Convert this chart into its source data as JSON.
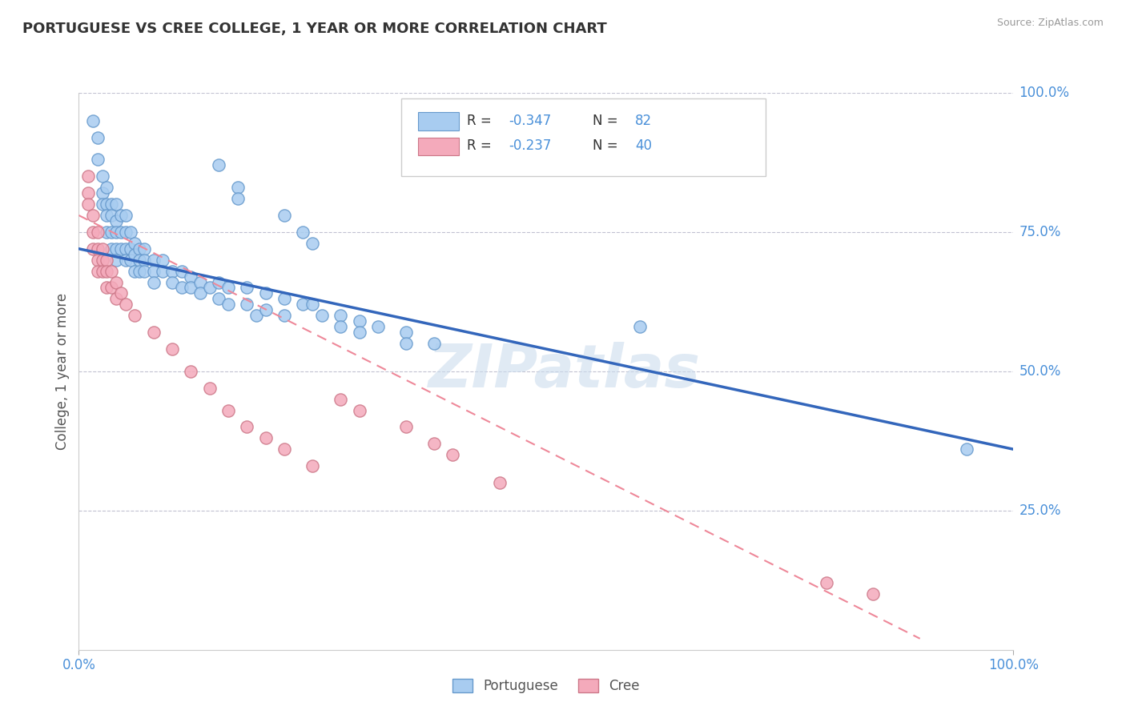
{
  "title": "PORTUGUESE VS CREE COLLEGE, 1 YEAR OR MORE CORRELATION CHART",
  "source_text": "Source: ZipAtlas.com",
  "ylabel": "College, 1 year or more",
  "xlim": [
    0.0,
    1.0
  ],
  "ylim": [
    0.0,
    1.0
  ],
  "legend_r1": "-0.347",
  "legend_n1": "82",
  "legend_r2": "-0.237",
  "legend_n2": "40",
  "blue_color": "#A8CCF0",
  "blue_edge_color": "#6699CC",
  "pink_color": "#F4AABB",
  "pink_edge_color": "#CC7788",
  "blue_line_color": "#3366BB",
  "pink_line_color": "#EE8899",
  "watermark": "ZIPatlas",
  "blue_scatter": [
    [
      0.015,
      0.95
    ],
    [
      0.02,
      0.92
    ],
    [
      0.02,
      0.88
    ],
    [
      0.025,
      0.85
    ],
    [
      0.025,
      0.82
    ],
    [
      0.025,
      0.8
    ],
    [
      0.03,
      0.83
    ],
    [
      0.03,
      0.8
    ],
    [
      0.03,
      0.78
    ],
    [
      0.03,
      0.75
    ],
    [
      0.035,
      0.8
    ],
    [
      0.035,
      0.78
    ],
    [
      0.035,
      0.75
    ],
    [
      0.035,
      0.72
    ],
    [
      0.04,
      0.8
    ],
    [
      0.04,
      0.77
    ],
    [
      0.04,
      0.75
    ],
    [
      0.04,
      0.72
    ],
    [
      0.04,
      0.7
    ],
    [
      0.045,
      0.78
    ],
    [
      0.045,
      0.75
    ],
    [
      0.045,
      0.72
    ],
    [
      0.05,
      0.78
    ],
    [
      0.05,
      0.75
    ],
    [
      0.05,
      0.72
    ],
    [
      0.05,
      0.7
    ],
    [
      0.055,
      0.75
    ],
    [
      0.055,
      0.72
    ],
    [
      0.055,
      0.7
    ],
    [
      0.06,
      0.73
    ],
    [
      0.06,
      0.71
    ],
    [
      0.06,
      0.68
    ],
    [
      0.065,
      0.72
    ],
    [
      0.065,
      0.7
    ],
    [
      0.065,
      0.68
    ],
    [
      0.07,
      0.72
    ],
    [
      0.07,
      0.7
    ],
    [
      0.07,
      0.68
    ],
    [
      0.08,
      0.7
    ],
    [
      0.08,
      0.68
    ],
    [
      0.08,
      0.66
    ],
    [
      0.09,
      0.7
    ],
    [
      0.09,
      0.68
    ],
    [
      0.1,
      0.68
    ],
    [
      0.1,
      0.66
    ],
    [
      0.11,
      0.68
    ],
    [
      0.11,
      0.65
    ],
    [
      0.12,
      0.67
    ],
    [
      0.12,
      0.65
    ],
    [
      0.13,
      0.66
    ],
    [
      0.13,
      0.64
    ],
    [
      0.14,
      0.65
    ],
    [
      0.15,
      0.66
    ],
    [
      0.15,
      0.63
    ],
    [
      0.16,
      0.65
    ],
    [
      0.16,
      0.62
    ],
    [
      0.18,
      0.65
    ],
    [
      0.18,
      0.62
    ],
    [
      0.19,
      0.6
    ],
    [
      0.2,
      0.64
    ],
    [
      0.2,
      0.61
    ],
    [
      0.22,
      0.63
    ],
    [
      0.22,
      0.6
    ],
    [
      0.24,
      0.62
    ],
    [
      0.15,
      0.87
    ],
    [
      0.22,
      0.78
    ],
    [
      0.24,
      0.75
    ],
    [
      0.25,
      0.73
    ],
    [
      0.17,
      0.83
    ],
    [
      0.17,
      0.81
    ],
    [
      0.25,
      0.62
    ],
    [
      0.26,
      0.6
    ],
    [
      0.28,
      0.6
    ],
    [
      0.28,
      0.58
    ],
    [
      0.3,
      0.59
    ],
    [
      0.3,
      0.57
    ],
    [
      0.32,
      0.58
    ],
    [
      0.35,
      0.57
    ],
    [
      0.35,
      0.55
    ],
    [
      0.38,
      0.55
    ],
    [
      0.6,
      0.58
    ],
    [
      0.95,
      0.36
    ]
  ],
  "pink_scatter": [
    [
      0.01,
      0.85
    ],
    [
      0.01,
      0.82
    ],
    [
      0.01,
      0.8
    ],
    [
      0.015,
      0.78
    ],
    [
      0.015,
      0.75
    ],
    [
      0.015,
      0.72
    ],
    [
      0.02,
      0.75
    ],
    [
      0.02,
      0.72
    ],
    [
      0.02,
      0.7
    ],
    [
      0.02,
      0.68
    ],
    [
      0.025,
      0.72
    ],
    [
      0.025,
      0.7
    ],
    [
      0.025,
      0.68
    ],
    [
      0.03,
      0.7
    ],
    [
      0.03,
      0.68
    ],
    [
      0.03,
      0.65
    ],
    [
      0.035,
      0.68
    ],
    [
      0.035,
      0.65
    ],
    [
      0.04,
      0.66
    ],
    [
      0.04,
      0.63
    ],
    [
      0.045,
      0.64
    ],
    [
      0.05,
      0.62
    ],
    [
      0.06,
      0.6
    ],
    [
      0.08,
      0.57
    ],
    [
      0.1,
      0.54
    ],
    [
      0.12,
      0.5
    ],
    [
      0.14,
      0.47
    ],
    [
      0.16,
      0.43
    ],
    [
      0.18,
      0.4
    ],
    [
      0.2,
      0.38
    ],
    [
      0.22,
      0.36
    ],
    [
      0.25,
      0.33
    ],
    [
      0.28,
      0.45
    ],
    [
      0.3,
      0.43
    ],
    [
      0.35,
      0.4
    ],
    [
      0.38,
      0.37
    ],
    [
      0.4,
      0.35
    ],
    [
      0.45,
      0.3
    ],
    [
      0.8,
      0.12
    ],
    [
      0.85,
      0.1
    ]
  ],
  "blue_line_x": [
    0.0,
    1.0
  ],
  "blue_line_y": [
    0.72,
    0.36
  ],
  "pink_line_x": [
    0.0,
    0.9
  ],
  "pink_line_y": [
    0.78,
    0.02
  ]
}
